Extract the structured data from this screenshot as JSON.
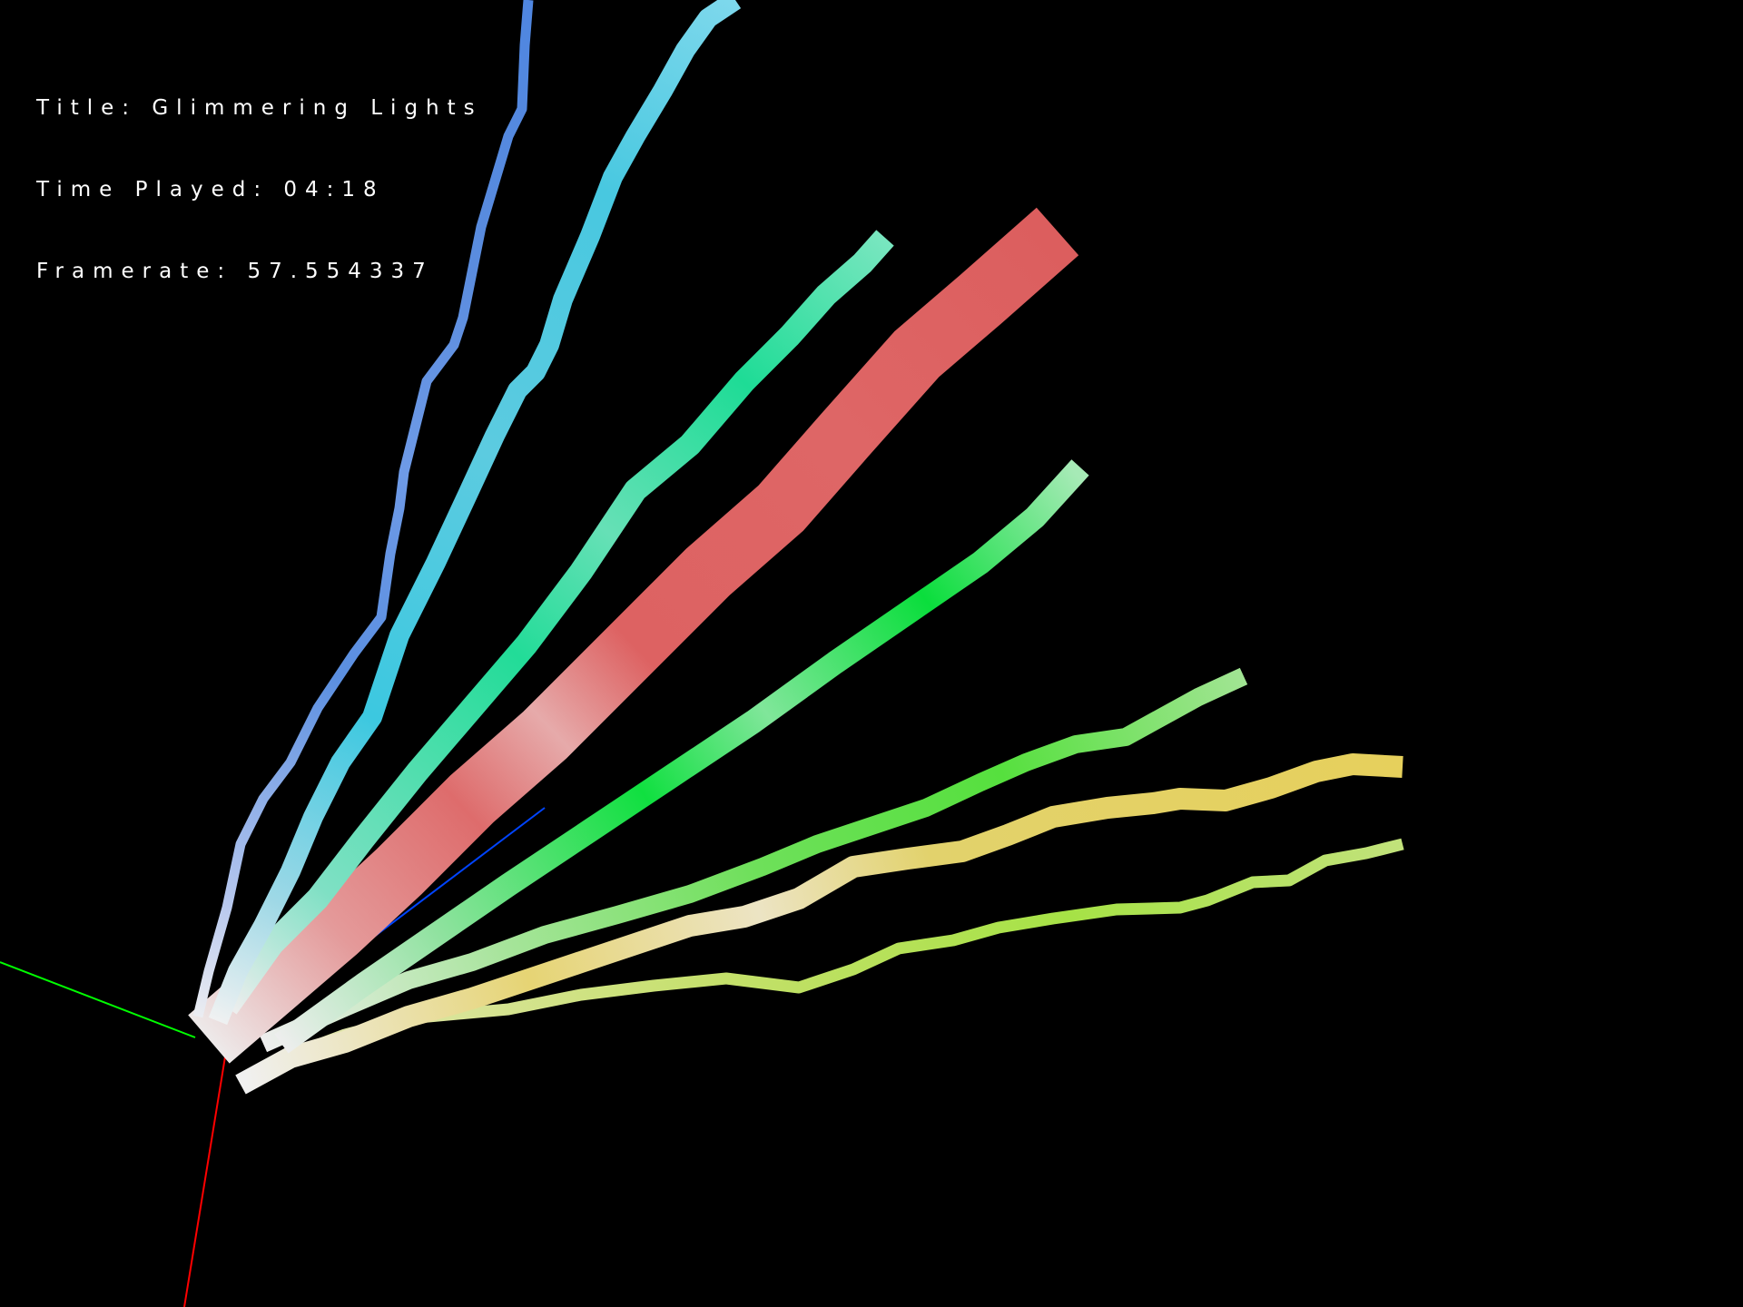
{
  "hud": {
    "title_line": "Title: Glimmering Lights",
    "time_line": "Time Played: 04:18",
    "framerate_line": "Framerate: 57.554337"
  },
  "scene": {
    "background": "#000000",
    "axes": {
      "x_color": "#00ff00",
      "y_color": "#ff0000",
      "z_color": "#0000ff"
    },
    "ribbons": [
      {
        "name": "blue",
        "color": "#5b8fe0"
      },
      {
        "name": "cyan",
        "color": "#4ccfe0"
      },
      {
        "name": "teal",
        "color": "#2fe0a8"
      },
      {
        "name": "red",
        "color": "#e06060"
      },
      {
        "name": "green",
        "color": "#22e040"
      },
      {
        "name": "lime",
        "color": "#66e04c"
      },
      {
        "name": "yellow",
        "color": "#e6d466"
      },
      {
        "name": "chartreuse",
        "color": "#b8e04c"
      }
    ]
  }
}
